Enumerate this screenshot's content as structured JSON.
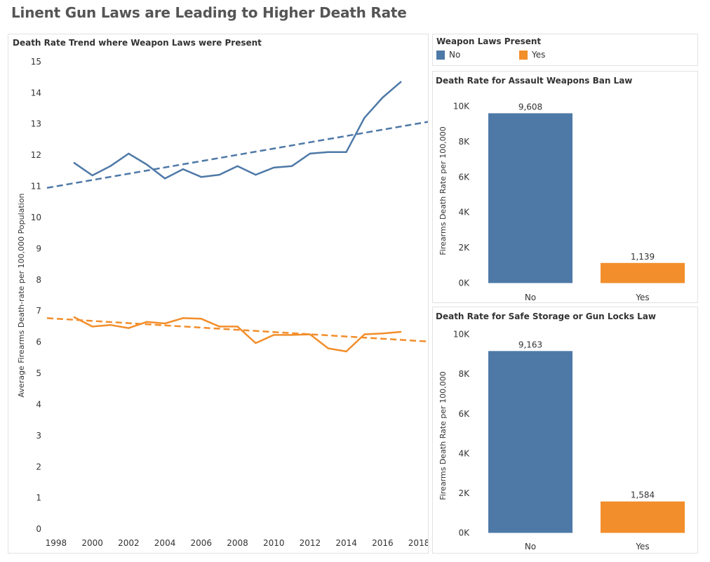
{
  "dashboard": {
    "title": "Linent Gun Laws are Leading to Higher Death Rate"
  },
  "legend": {
    "title": "Weapon Laws Present",
    "items": [
      {
        "label": "No",
        "color": "#4e79a7"
      },
      {
        "label": "Yes",
        "color": "#f28e2b"
      }
    ]
  },
  "chart_data": [
    {
      "type": "line",
      "title": "Death Rate Trend where Weapon Laws were Present",
      "xlabel": "",
      "ylabel": "Average Firearms Death-rate per 100,000 Population",
      "xlim": [
        1997.5,
        2018.5
      ],
      "ylim": [
        -0.2,
        15.2
      ],
      "x_ticks": [
        "1998",
        "2000",
        "2002",
        "2004",
        "2006",
        "2008",
        "2010",
        "2012",
        "2014",
        "2016",
        "2018"
      ],
      "y_ticks": [
        "0",
        "1",
        "2",
        "3",
        "4",
        "5",
        "6",
        "7",
        "8",
        "9",
        "10",
        "11",
        "12",
        "13",
        "14",
        "15"
      ],
      "x": [
        1999,
        2000,
        2001,
        2002,
        2003,
        2004,
        2005,
        2006,
        2007,
        2008,
        2009,
        2010,
        2011,
        2012,
        2013,
        2014,
        2015,
        2016,
        2017
      ],
      "series": [
        {
          "name": "No",
          "color": "#4e79a7",
          "values": [
            11.75,
            11.35,
            11.65,
            12.05,
            11.7,
            11.25,
            11.55,
            11.3,
            11.37,
            11.65,
            11.37,
            11.6,
            11.65,
            12.05,
            12.1,
            12.1,
            13.2,
            13.85,
            14.35
          ],
          "trend": [
            10.95,
            13.07
          ]
        },
        {
          "name": "Yes",
          "color": "#f28e2b",
          "values": [
            6.8,
            6.5,
            6.55,
            6.45,
            6.65,
            6.6,
            6.77,
            6.75,
            6.5,
            6.5,
            5.97,
            6.23,
            6.23,
            6.25,
            5.8,
            5.7,
            6.25,
            6.28,
            6.33
          ],
          "trend": [
            6.77,
            6.02
          ]
        }
      ],
      "trend_x": [
        1997.5,
        2018.5
      ]
    },
    {
      "type": "bar",
      "title": "Death Rate for Assault Weapons Ban Law",
      "xlabel": "",
      "ylabel": "Firearms Death Rate per 100,000",
      "categories": [
        "No",
        "Yes"
      ],
      "values": [
        9608,
        1139
      ],
      "data_labels": [
        "9,608",
        "1,139"
      ],
      "colors": [
        "#4e79a7",
        "#f28e2b"
      ],
      "ylim": [
        -300,
        10300
      ],
      "y_ticks": [
        {
          "v": 0,
          "label": "0K"
        },
        {
          "v": 2000,
          "label": "2K"
        },
        {
          "v": 4000,
          "label": "4K"
        },
        {
          "v": 6000,
          "label": "6K"
        },
        {
          "v": 8000,
          "label": "8K"
        },
        {
          "v": 10000,
          "label": "10K"
        }
      ]
    },
    {
      "type": "bar",
      "title": "Death Rate for Safe Storage or Gun Locks Law",
      "xlabel": "",
      "ylabel": "Firearms Death Rate per 100,000",
      "categories": [
        "No",
        "Yes"
      ],
      "values": [
        9163,
        1584
      ],
      "data_labels": [
        "9,163",
        "1,584"
      ],
      "colors": [
        "#4e79a7",
        "#f28e2b"
      ],
      "ylim": [
        -300,
        10200
      ],
      "y_ticks": [
        {
          "v": 0,
          "label": "0K"
        },
        {
          "v": 2000,
          "label": "2K"
        },
        {
          "v": 4000,
          "label": "4K"
        },
        {
          "v": 6000,
          "label": "6K"
        },
        {
          "v": 8000,
          "label": "8K"
        },
        {
          "v": 10000,
          "label": "10K"
        }
      ]
    }
  ]
}
